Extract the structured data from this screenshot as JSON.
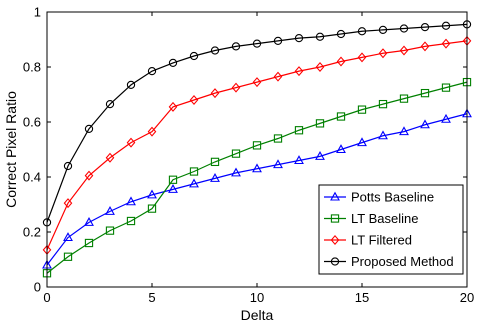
{
  "chart_data": {
    "type": "line",
    "xlabel": "Delta",
    "ylabel": "Correct Pixel Ratio",
    "xlim": [
      0,
      20
    ],
    "ylim": [
      0,
      1
    ],
    "xticks": [
      0,
      5,
      10,
      15,
      20
    ],
    "yticks": [
      0,
      0.2,
      0.4,
      0.6,
      0.8,
      1
    ],
    "xtick_labels": [
      "0",
      "5",
      "10",
      "15",
      "20"
    ],
    "ytick_labels": [
      "0",
      "0.2",
      "0.4",
      "0.6",
      "0.8",
      "1"
    ],
    "grid": false,
    "legend_position": "bottom-right",
    "x": [
      0,
      1,
      2,
      3,
      4,
      5,
      6,
      7,
      8,
      9,
      10,
      11,
      12,
      13,
      14,
      15,
      16,
      17,
      18,
      19,
      20
    ],
    "series": [
      {
        "name": "Potts Baseline",
        "color": "#0000ff",
        "marker": "triangle",
        "values": [
          0.08,
          0.18,
          0.235,
          0.275,
          0.31,
          0.335,
          0.355,
          0.375,
          0.395,
          0.415,
          0.43,
          0.445,
          0.46,
          0.475,
          0.5,
          0.525,
          0.55,
          0.565,
          0.59,
          0.61,
          0.63
        ]
      },
      {
        "name": "LT Baseline",
        "color": "#008000",
        "marker": "square",
        "values": [
          0.05,
          0.11,
          0.16,
          0.205,
          0.24,
          0.285,
          0.39,
          0.42,
          0.455,
          0.485,
          0.515,
          0.54,
          0.57,
          0.595,
          0.62,
          0.645,
          0.665,
          0.685,
          0.705,
          0.725,
          0.745
        ]
      },
      {
        "name": "LT Filtered",
        "color": "#ff0000",
        "marker": "diamond",
        "values": [
          0.135,
          0.305,
          0.405,
          0.47,
          0.525,
          0.565,
          0.655,
          0.68,
          0.705,
          0.725,
          0.745,
          0.765,
          0.785,
          0.8,
          0.82,
          0.835,
          0.85,
          0.86,
          0.875,
          0.885,
          0.895
        ]
      },
      {
        "name": "Proposed Method",
        "color": "#000000",
        "marker": "circle",
        "values": [
          0.235,
          0.44,
          0.575,
          0.665,
          0.735,
          0.785,
          0.815,
          0.84,
          0.86,
          0.875,
          0.885,
          0.895,
          0.905,
          0.91,
          0.92,
          0.93,
          0.935,
          0.94,
          0.945,
          0.95,
          0.955
        ]
      }
    ]
  }
}
